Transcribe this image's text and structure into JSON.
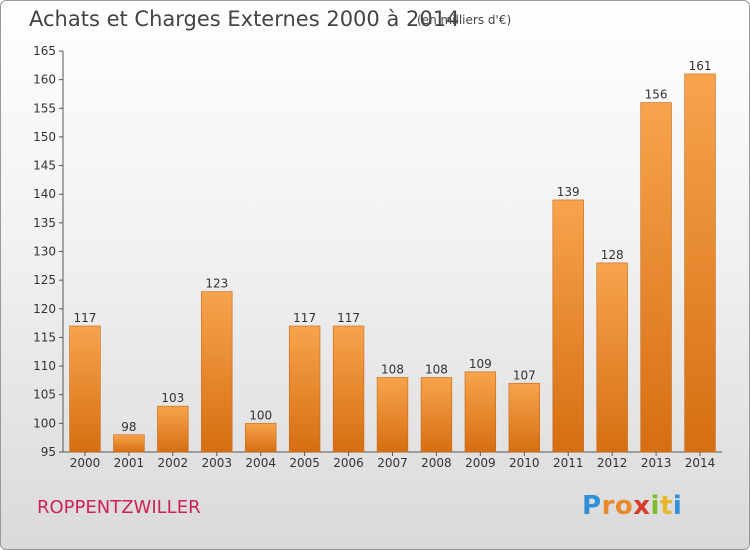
{
  "header": {
    "title": "Achats et Charges Externes 2000 à 2014",
    "subtitle": "(en milliers d'€)"
  },
  "footer": {
    "commune": "ROPPENTZWILLER",
    "logo_text": "Proxiti"
  },
  "colors": {
    "bar": "#f08a2a",
    "bar_light": "#f7a44d",
    "bar_dark": "#d66e12",
    "commune_text": "#cc2255",
    "axis_text": "#333333"
  },
  "chart_data": {
    "type": "bar",
    "title": "Achats et Charges Externes 2000 à 2014",
    "subtitle": "(en milliers d'€)",
    "categories": [
      "2000",
      "2001",
      "2002",
      "2003",
      "2004",
      "2005",
      "2006",
      "2007",
      "2008",
      "2009",
      "2010",
      "2011",
      "2012",
      "2013",
      "2014"
    ],
    "values": [
      117,
      98,
      103,
      123,
      100,
      117,
      117,
      108,
      108,
      109,
      107,
      139,
      128,
      156,
      161
    ],
    "ylim": [
      95,
      165
    ],
    "yticks": [
      95,
      100,
      105,
      110,
      115,
      120,
      125,
      130,
      135,
      140,
      145,
      150,
      155,
      160,
      165
    ],
    "xlabel": "",
    "ylabel": "",
    "grid": false,
    "data_labels": true
  }
}
